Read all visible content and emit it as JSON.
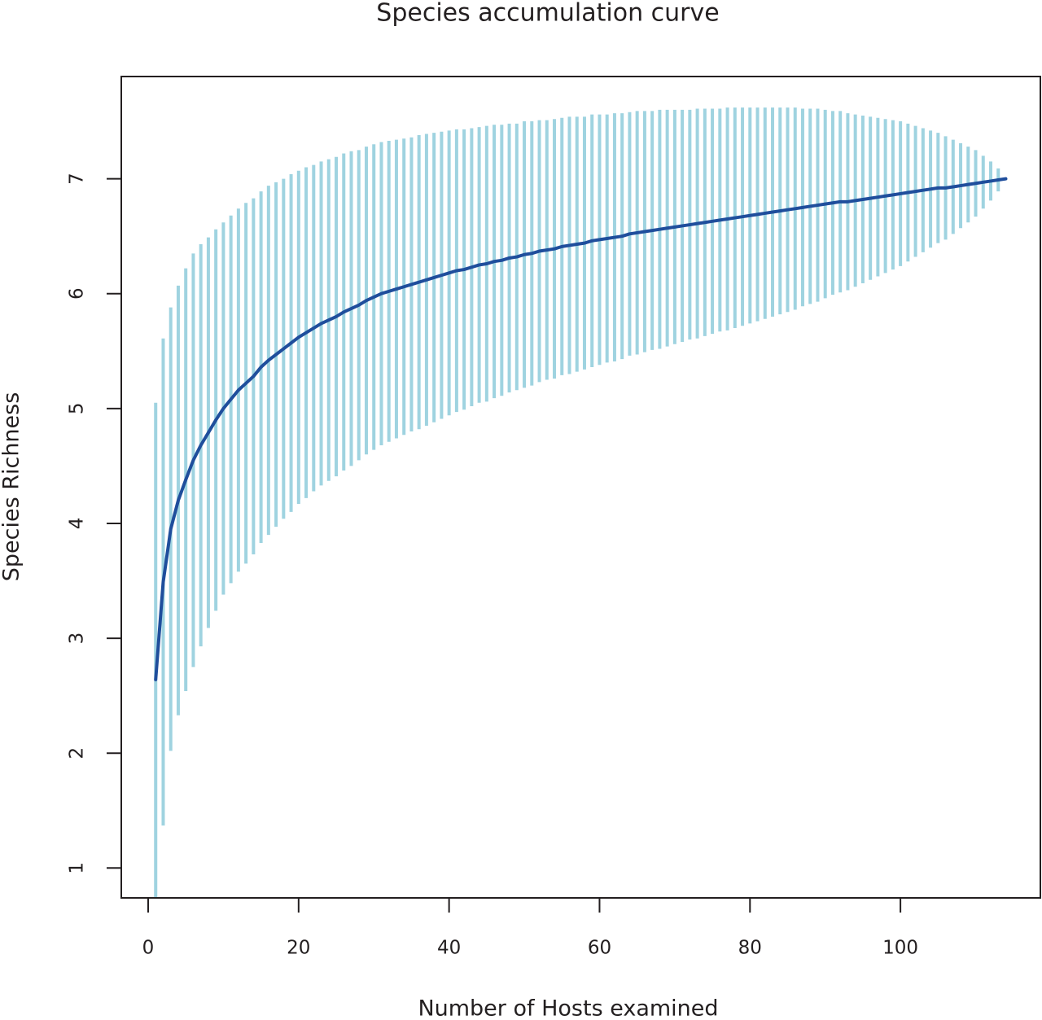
{
  "chart_data": {
    "type": "errorbar_line",
    "title": "Species accumulation curve",
    "x_label": "Number of Hosts examined",
    "y_label": "Species Richness",
    "xlim": [
      -3.57,
      118.6
    ],
    "ylim": [
      0.74,
      7.89
    ],
    "xticks": [
      0,
      20,
      40,
      60,
      80,
      100
    ],
    "yticks": [
      1,
      2,
      3,
      4,
      5,
      6,
      7
    ],
    "line_color": "#1f4e9c",
    "error_color": "#9fd3e0",
    "x": [
      1,
      2,
      3,
      4,
      5,
      6,
      7,
      8,
      9,
      10,
      11,
      12,
      13,
      14,
      15,
      16,
      17,
      18,
      19,
      20,
      21,
      22,
      23,
      24,
      25,
      26,
      27,
      28,
      29,
      30,
      31,
      32,
      33,
      34,
      35,
      36,
      37,
      38,
      39,
      40,
      41,
      42,
      43,
      44,
      45,
      46,
      47,
      48,
      49,
      50,
      51,
      52,
      53,
      54,
      55,
      56,
      57,
      58,
      59,
      60,
      61,
      62,
      63,
      64,
      65,
      66,
      67,
      68,
      69,
      70,
      71,
      72,
      73,
      74,
      75,
      76,
      77,
      78,
      79,
      80,
      81,
      82,
      83,
      84,
      85,
      86,
      87,
      88,
      89,
      90,
      91,
      92,
      93,
      94,
      95,
      96,
      97,
      98,
      99,
      100,
      101,
      102,
      103,
      104,
      105,
      106,
      107,
      108,
      109,
      110,
      111,
      112,
      113,
      114
    ],
    "values": [
      2.64,
      3.49,
      3.95,
      4.2,
      4.38,
      4.55,
      4.68,
      4.79,
      4.9,
      5.0,
      5.08,
      5.16,
      5.22,
      5.28,
      5.36,
      5.42,
      5.47,
      5.52,
      5.57,
      5.62,
      5.66,
      5.7,
      5.74,
      5.77,
      5.8,
      5.84,
      5.87,
      5.9,
      5.94,
      5.97,
      6.0,
      6.02,
      6.04,
      6.06,
      6.08,
      6.1,
      6.12,
      6.14,
      6.16,
      6.18,
      6.2,
      6.21,
      6.23,
      6.25,
      6.26,
      6.28,
      6.29,
      6.31,
      6.32,
      6.34,
      6.35,
      6.37,
      6.38,
      6.39,
      6.41,
      6.42,
      6.43,
      6.44,
      6.46,
      6.47,
      6.48,
      6.49,
      6.5,
      6.52,
      6.53,
      6.54,
      6.55,
      6.56,
      6.57,
      6.58,
      6.59,
      6.6,
      6.61,
      6.62,
      6.63,
      6.64,
      6.65,
      6.66,
      6.67,
      6.68,
      6.69,
      6.7,
      6.71,
      6.72,
      6.73,
      6.74,
      6.75,
      6.76,
      6.77,
      6.78,
      6.79,
      6.8,
      6.8,
      6.81,
      6.82,
      6.83,
      6.84,
      6.85,
      6.86,
      6.87,
      6.88,
      6.89,
      6.9,
      6.91,
      6.92,
      6.92,
      6.93,
      6.94,
      6.95,
      6.96,
      6.97,
      6.98,
      6.99,
      7.0
    ],
    "errors": [
      2.41,
      2.12,
      1.93,
      1.87,
      1.84,
      1.8,
      1.75,
      1.7,
      1.66,
      1.62,
      1.6,
      1.58,
      1.57,
      1.55,
      1.53,
      1.52,
      1.5,
      1.48,
      1.47,
      1.45,
      1.44,
      1.42,
      1.41,
      1.4,
      1.39,
      1.38,
      1.37,
      1.35,
      1.34,
      1.33,
      1.32,
      1.31,
      1.3,
      1.29,
      1.28,
      1.28,
      1.27,
      1.26,
      1.25,
      1.24,
      1.23,
      1.22,
      1.21,
      1.2,
      1.2,
      1.19,
      1.18,
      1.17,
      1.16,
      1.16,
      1.15,
      1.14,
      1.13,
      1.13,
      1.12,
      1.12,
      1.11,
      1.1,
      1.1,
      1.09,
      1.08,
      1.08,
      1.07,
      1.06,
      1.06,
      1.05,
      1.04,
      1.04,
      1.03,
      1.02,
      1.01,
      1.0,
      1.0,
      0.99,
      0.98,
      0.97,
      0.97,
      0.96,
      0.95,
      0.94,
      0.93,
      0.92,
      0.91,
      0.9,
      0.89,
      0.88,
      0.86,
      0.85,
      0.84,
      0.82,
      0.8,
      0.79,
      0.77,
      0.75,
      0.73,
      0.71,
      0.69,
      0.67,
      0.65,
      0.63,
      0.6,
      0.57,
      0.54,
      0.51,
      0.48,
      0.45,
      0.41,
      0.37,
      0.33,
      0.29,
      0.23,
      0.17,
      0.1,
      0
    ]
  }
}
